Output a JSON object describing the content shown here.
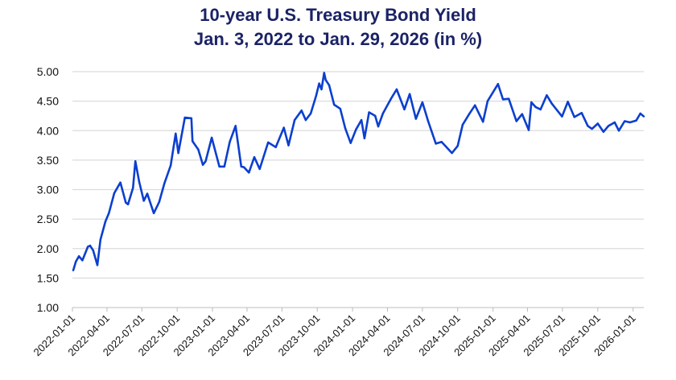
{
  "chart_data": {
    "type": "line",
    "title": "10-year U.S. Treasury Bond Yield",
    "subtitle": "Jan. 3, 2022 to Jan. 29, 2026 (in %)",
    "xlabel": "",
    "ylabel": "",
    "ylim": [
      1.0,
      5.0
    ],
    "xlim": [
      "2022-01-01",
      "2026-01-29"
    ],
    "grid": true,
    "line_color": "#0b3fcf",
    "y_ticks": [
      "1.00",
      "1.50",
      "2.00",
      "2.50",
      "3.00",
      "3.50",
      "4.00",
      "4.50",
      "5.00"
    ],
    "x_ticks": [
      "2022-01-01",
      "2022-04-01",
      "2022-07-01",
      "2022-10-01",
      "2023-01-01",
      "2023-04-01",
      "2023-07-01",
      "2023-10-01",
      "2024-01-01",
      "2024-04-01",
      "2024-07-01",
      "2024-10-01",
      "2025-01-01",
      "2025-04-01",
      "2025-07-01",
      "2025-10-01",
      "2026-01-01"
    ],
    "series": [
      {
        "x": [
          "2022-01-03",
          "2022-01-10",
          "2022-01-18",
          "2022-01-27",
          "2022-02-10",
          "2022-02-16",
          "2022-02-24",
          "2022-03-07",
          "2022-03-15",
          "2022-03-28",
          "2022-04-06",
          "2022-04-20",
          "2022-05-06",
          "2022-05-20",
          "2022-05-26",
          "2022-06-08",
          "2022-06-14",
          "2022-06-24",
          "2022-07-06",
          "2022-07-15",
          "2022-08-01",
          "2022-08-15",
          "2022-08-29",
          "2022-09-14",
          "2022-09-27",
          "2022-10-04",
          "2022-10-21",
          "2022-11-07",
          "2022-11-10",
          "2022-11-25",
          "2022-12-07",
          "2022-12-14",
          "2022-12-30",
          "2023-01-19",
          "2023-02-01",
          "2023-02-15",
          "2023-03-02",
          "2023-03-17",
          "2023-03-24",
          "2023-04-06",
          "2023-04-20",
          "2023-05-04",
          "2023-05-26",
          "2023-06-15",
          "2023-07-06",
          "2023-07-18",
          "2023-08-03",
          "2023-08-21",
          "2023-09-01",
          "2023-09-14",
          "2023-09-28",
          "2023-10-06",
          "2023-10-12",
          "2023-10-19",
          "2023-10-23",
          "2023-11-01",
          "2023-11-14",
          "2023-11-30",
          "2023-12-13",
          "2023-12-27",
          "2024-01-10",
          "2024-01-24",
          "2024-02-01",
          "2024-02-13",
          "2024-02-29",
          "2024-03-08",
          "2024-03-20",
          "2024-04-10",
          "2024-04-25",
          "2024-05-15",
          "2024-05-29",
          "2024-06-14",
          "2024-07-01",
          "2024-07-16",
          "2024-08-05",
          "2024-08-20",
          "2024-09-16",
          "2024-10-01",
          "2024-10-14",
          "2024-10-31",
          "2024-11-15",
          "2024-12-06",
          "2024-12-18",
          "2025-01-14",
          "2025-01-27",
          "2025-02-11",
          "2025-03-03",
          "2025-03-18",
          "2025-04-04",
          "2025-04-11",
          "2025-04-22",
          "2025-05-05",
          "2025-05-21",
          "2025-06-03",
          "2025-06-30",
          "2025-07-15",
          "2025-08-01",
          "2025-08-20",
          "2025-09-05",
          "2025-09-16",
          "2025-10-01",
          "2025-10-16",
          "2025-10-29",
          "2025-11-14",
          "2025-11-25",
          "2025-12-10",
          "2025-12-24",
          "2026-01-09",
          "2026-01-20",
          "2026-01-29"
        ],
        "y": [
          1.63,
          1.78,
          1.87,
          1.8,
          2.03,
          2.05,
          1.97,
          1.72,
          2.15,
          2.46,
          2.6,
          2.94,
          3.12,
          2.78,
          2.75,
          3.03,
          3.48,
          3.13,
          2.81,
          2.93,
          2.6,
          2.79,
          3.11,
          3.41,
          3.95,
          3.62,
          4.22,
          4.21,
          3.82,
          3.68,
          3.42,
          3.48,
          3.88,
          3.39,
          3.39,
          3.81,
          4.08,
          3.39,
          3.38,
          3.29,
          3.55,
          3.35,
          3.8,
          3.72,
          4.05,
          3.75,
          4.18,
          4.34,
          4.18,
          4.29,
          4.59,
          4.8,
          4.7,
          4.98,
          4.86,
          4.77,
          4.44,
          4.37,
          4.04,
          3.79,
          4.02,
          4.18,
          3.87,
          4.31,
          4.25,
          4.07,
          4.29,
          4.54,
          4.7,
          4.36,
          4.62,
          4.2,
          4.48,
          4.16,
          3.78,
          3.81,
          3.62,
          3.74,
          4.1,
          4.28,
          4.43,
          4.15,
          4.5,
          4.79,
          4.53,
          4.54,
          4.16,
          4.28,
          4.01,
          4.48,
          4.4,
          4.36,
          4.6,
          4.46,
          4.24,
          4.49,
          4.23,
          4.3,
          4.08,
          4.03,
          4.12,
          3.98,
          4.08,
          4.14,
          4.0,
          4.16,
          4.14,
          4.17,
          4.29,
          4.24
        ]
      }
    ]
  }
}
